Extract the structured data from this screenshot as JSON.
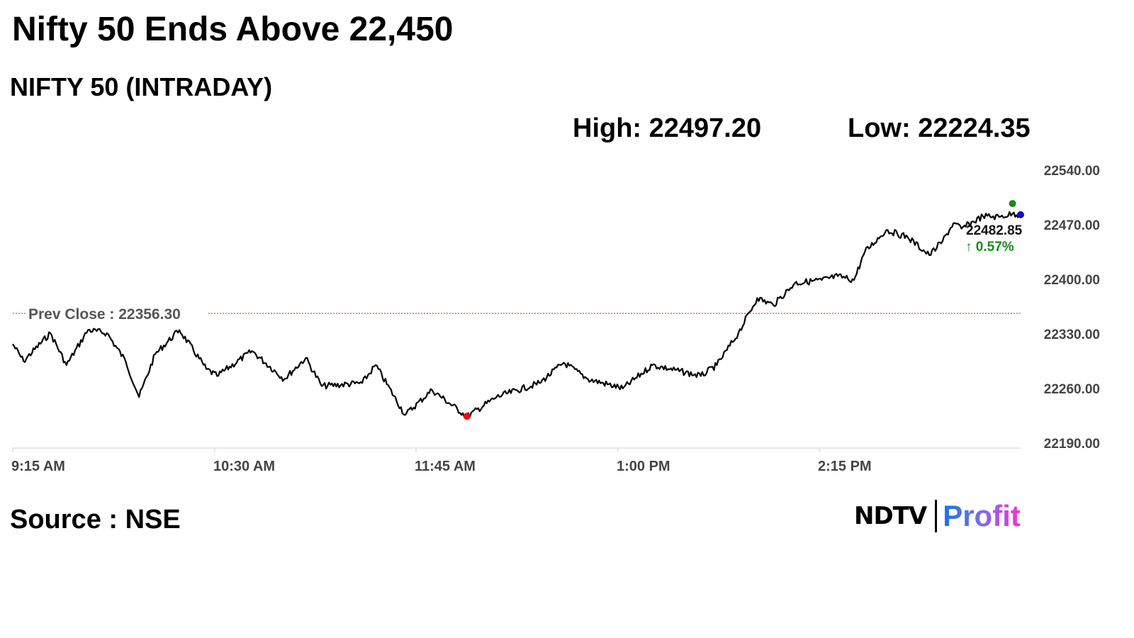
{
  "title": "Nifty 50 Ends Above 22,450",
  "subtitle": "NIFTY 50 (INTRADAY)",
  "high_label": "High: 22497.20",
  "low_label": "Low: 22224.35",
  "source": "Source : NSE",
  "logo": {
    "ndtv": "NDTV",
    "profit": "Profit"
  },
  "chart_data": {
    "type": "line",
    "title": "NIFTY 50 (INTRADAY)",
    "xlabel": "",
    "ylabel": "",
    "ylim": [
      22190,
      22540
    ],
    "y_ticks": [
      "22540.00",
      "22470.00",
      "22400.00",
      "22330.00",
      "22260.00",
      "22190.00"
    ],
    "x_ticks": [
      "9:15 AM",
      "10:30 AM",
      "11:45 AM",
      "1:00 PM",
      "2:15 PM"
    ],
    "x_range": [
      "09:15",
      "15:30"
    ],
    "grid": false,
    "prev_close": {
      "label": "Prev Close : 22356.30",
      "value": 22356.3,
      "color": "#e03030"
    },
    "last": {
      "value_label": "22482.85",
      "change_label": "↑ 0.57%",
      "change_color": "#1a8a1a"
    },
    "markers": {
      "low": {
        "time": "12:04",
        "value": 22224.35,
        "color": "#ff0000"
      },
      "high": {
        "time": "15:27",
        "value": 22497.2,
        "color": "#1a8a1a"
      },
      "close": {
        "time": "15:30",
        "value": 22482.85,
        "color": "#1010c0"
      }
    },
    "series": [
      {
        "color": "#000000",
        "points": [
          [
            "09:15",
            22317
          ],
          [
            "09:19",
            22295
          ],
          [
            "09:29",
            22331
          ],
          [
            "09:35",
            22290
          ],
          [
            "09:43",
            22335
          ],
          [
            "09:50",
            22331
          ],
          [
            "09:57",
            22295
          ],
          [
            "10:02",
            22249
          ],
          [
            "10:08",
            22304
          ],
          [
            "10:17",
            22335
          ],
          [
            "10:27",
            22285
          ],
          [
            "10:31",
            22276
          ],
          [
            "10:44",
            22308
          ],
          [
            "10:56",
            22272
          ],
          [
            "11:04",
            22299
          ],
          [
            "11:10",
            22263
          ],
          [
            "11:25",
            22267
          ],
          [
            "11:30",
            22290
          ],
          [
            "11:41",
            22226
          ],
          [
            "11:51",
            22258
          ],
          [
            "12:04",
            22224
          ],
          [
            "12:15",
            22249
          ],
          [
            "12:31",
            22267
          ],
          [
            "12:40",
            22293
          ],
          [
            "12:49",
            22272
          ],
          [
            "13:02",
            22260
          ],
          [
            "13:13",
            22290
          ],
          [
            "13:31",
            22276
          ],
          [
            "13:37",
            22290
          ],
          [
            "13:45",
            22331
          ],
          [
            "13:52",
            22376
          ],
          [
            "13:58",
            22367
          ],
          [
            "14:06",
            22395
          ],
          [
            "14:16",
            22399
          ],
          [
            "14:22",
            22404
          ],
          [
            "14:28",
            22399
          ],
          [
            "14:32",
            22435
          ],
          [
            "14:40",
            22463
          ],
          [
            "14:48",
            22454
          ],
          [
            "14:56",
            22431
          ],
          [
            "15:01",
            22449
          ],
          [
            "15:05",
            22472
          ],
          [
            "15:08",
            22465
          ],
          [
            "15:16",
            22481
          ],
          [
            "15:22",
            22480
          ],
          [
            "15:27",
            22484
          ],
          [
            "15:30",
            22482.85
          ]
        ]
      }
    ]
  }
}
